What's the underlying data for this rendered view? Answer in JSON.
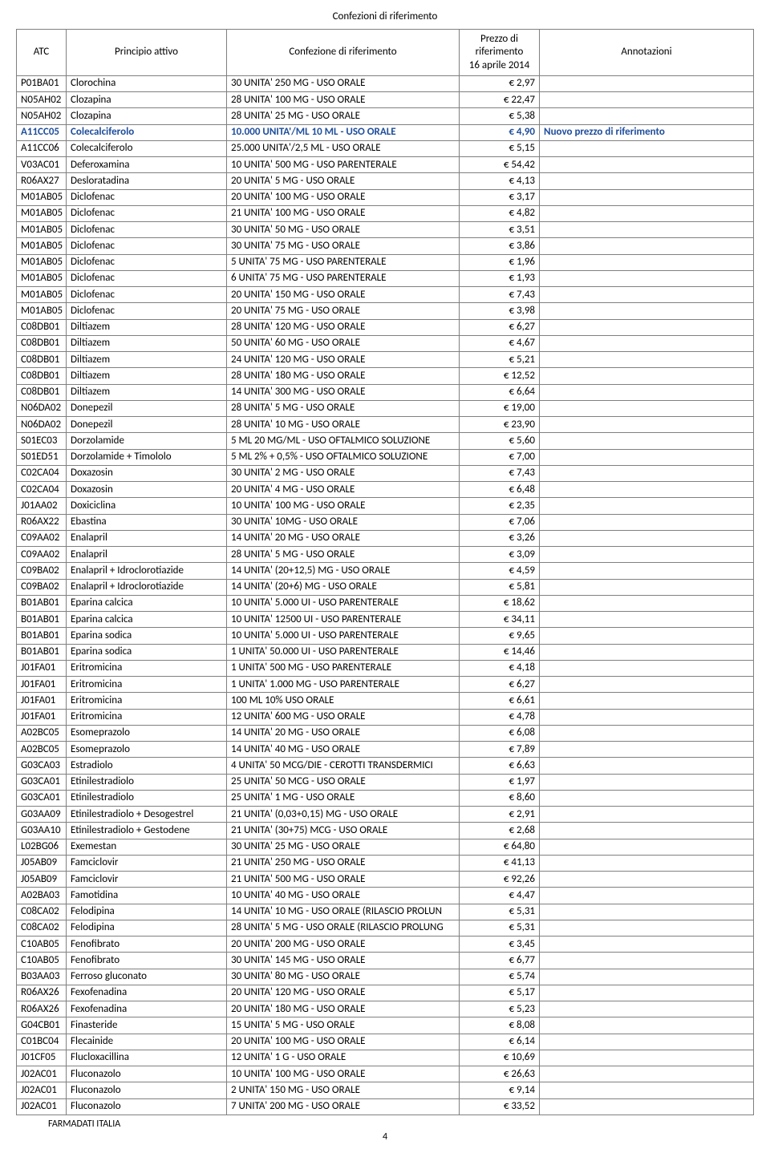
{
  "doc_title": "Confezioni di riferimento",
  "headers": {
    "atc": "ATC",
    "principio": "Principio attivo",
    "confezione": "Confezione di riferimento",
    "prezzo_line1": "Prezzo di",
    "prezzo_line2": "riferimento",
    "prezzo_line3": "16 aprile 2014",
    "annotazioni": "Annotazioni"
  },
  "footer": "FARMADATI ITALIA",
  "page_num": "4",
  "rows": [
    {
      "atc": "P01BA01",
      "p": "Clorochina",
      "c": "30 UNITA' 250 MG - USO ORALE",
      "pr": "€ 2,97",
      "a": ""
    },
    {
      "atc": "N05AH02",
      "p": "Clozapina",
      "c": "28 UNITA' 100 MG - USO ORALE",
      "pr": "€ 22,47",
      "a": ""
    },
    {
      "atc": "N05AH02",
      "p": "Clozapina",
      "c": "28 UNITA' 25 MG - USO ORALE",
      "pr": "€ 5,38",
      "a": ""
    },
    {
      "atc": "A11CC05",
      "p": "Colecalciferolo",
      "c": "10.000 UNITA'/ML 10 ML - USO ORALE",
      "pr": "€ 4,90",
      "a": "Nuovo prezzo di riferimento",
      "hl": true
    },
    {
      "atc": "A11CC06",
      "p": "Colecalciferolo",
      "c": "25.000 UNITA'/2,5 ML  - USO ORALE",
      "pr": "€ 5,15",
      "a": ""
    },
    {
      "atc": "V03AC01",
      "p": "Deferoxamina",
      "c": "10 UNITA' 500 MG - USO PARENTERALE",
      "pr": "€ 54,42",
      "a": ""
    },
    {
      "atc": "R06AX27",
      "p": "Desloratadina",
      "c": "20 UNITA' 5 MG - USO ORALE",
      "pr": "€ 4,13",
      "a": ""
    },
    {
      "atc": "M01AB05",
      "p": "Diclofenac",
      "c": "20 UNITA' 100 MG - USO ORALE",
      "pr": "€ 3,17",
      "a": ""
    },
    {
      "atc": "M01AB05",
      "p": "Diclofenac",
      "c": "21 UNITA' 100 MG - USO ORALE",
      "pr": "€ 4,82",
      "a": ""
    },
    {
      "atc": "M01AB05",
      "p": "Diclofenac",
      "c": "30 UNITA' 50 MG - USO ORALE",
      "pr": "€ 3,51",
      "a": ""
    },
    {
      "atc": "M01AB05",
      "p": "Diclofenac",
      "c": "30 UNITA' 75 MG - USO ORALE",
      "pr": "€ 3,86",
      "a": ""
    },
    {
      "atc": "M01AB05",
      "p": "Diclofenac",
      "c": "5 UNITA' 75 MG - USO PARENTERALE",
      "pr": "€ 1,96",
      "a": ""
    },
    {
      "atc": "M01AB05",
      "p": "Diclofenac",
      "c": "6 UNITA' 75 MG - USO PARENTERALE",
      "pr": "€ 1,93",
      "a": ""
    },
    {
      "atc": "M01AB05",
      "p": "Diclofenac",
      "c": "20 UNITA' 150 MG - USO ORALE",
      "pr": "€ 7,43",
      "a": ""
    },
    {
      "atc": "M01AB05",
      "p": "Diclofenac",
      "c": "20 UNITA' 75 MG - USO ORALE",
      "pr": "€ 3,98",
      "a": ""
    },
    {
      "atc": "C08DB01",
      "p": "Diltiazem",
      "c": "28 UNITA' 120 MG - USO ORALE",
      "pr": "€ 6,27",
      "a": ""
    },
    {
      "atc": "C08DB01",
      "p": "Diltiazem",
      "c": "50 UNITA' 60 MG - USO ORALE",
      "pr": "€ 4,67",
      "a": ""
    },
    {
      "atc": "C08DB01",
      "p": "Diltiazem",
      "c": "24 UNITA' 120 MG - USO ORALE",
      "pr": "€ 5,21",
      "a": ""
    },
    {
      "atc": "C08DB01",
      "p": "Diltiazem",
      "c": "28 UNITA' 180 MG - USO ORALE",
      "pr": "€ 12,52",
      "a": ""
    },
    {
      "atc": "C08DB01",
      "p": "Diltiazem",
      "c": "14 UNITA' 300 MG - USO ORALE",
      "pr": "€ 6,64",
      "a": ""
    },
    {
      "atc": "N06DA02",
      "p": "Donepezil",
      "c": "28 UNITA' 5 MG - USO ORALE",
      "pr": "€ 19,00",
      "a": ""
    },
    {
      "atc": "N06DA02",
      "p": "Donepezil",
      "c": "28 UNITA' 10 MG - USO ORALE",
      "pr": "€ 23,90",
      "a": ""
    },
    {
      "atc": "S01EC03",
      "p": "Dorzolamide",
      "c": "5 ML 20 MG/ML - USO OFTALMICO SOLUZIONE",
      "pr": "€ 5,60",
      "a": ""
    },
    {
      "atc": "S01ED51",
      "p": "Dorzolamide + Timololo",
      "c": "5 ML 2% + 0,5% - USO OFTALMICO SOLUZIONE",
      "pr": "€ 7,00",
      "a": ""
    },
    {
      "atc": "C02CA04",
      "p": "Doxazosin",
      "c": "30 UNITA' 2 MG - USO ORALE",
      "pr": "€ 7,43",
      "a": ""
    },
    {
      "atc": "C02CA04",
      "p": "Doxazosin",
      "c": "20 UNITA' 4 MG - USO ORALE",
      "pr": "€ 6,48",
      "a": ""
    },
    {
      "atc": "J01AA02",
      "p": "Doxiciclina",
      "c": "10 UNITA' 100 MG - USO ORALE",
      "pr": "€ 2,35",
      "a": ""
    },
    {
      "atc": "R06AX22",
      "p": "Ebastina",
      "c": "30 UNITA' 10MG - USO ORALE",
      "pr": "€ 7,06",
      "a": ""
    },
    {
      "atc": "C09AA02",
      "p": "Enalapril",
      "c": "14 UNITA' 20 MG - USO ORALE",
      "pr": "€ 3,26",
      "a": ""
    },
    {
      "atc": "C09AA02",
      "p": "Enalapril",
      "c": "28 UNITA' 5 MG - USO ORALE",
      "pr": "€ 3,09",
      "a": ""
    },
    {
      "atc": "C09BA02",
      "p": "Enalapril + Idroclorotiazide",
      "c": "14 UNITA' (20+12,5) MG - USO ORALE",
      "pr": "€ 4,59",
      "a": ""
    },
    {
      "atc": "C09BA02",
      "p": "Enalapril + Idroclorotiazide",
      "c": "14 UNITA' (20+6) MG - USO ORALE",
      "pr": "€ 5,81",
      "a": ""
    },
    {
      "atc": "B01AB01",
      "p": "Eparina calcica",
      "c": "10 UNITA' 5.000 UI - USO PARENTERALE",
      "pr": "€ 18,62",
      "a": ""
    },
    {
      "atc": "B01AB01",
      "p": "Eparina calcica",
      "c": "10 UNITA' 12500 UI - USO PARENTERALE",
      "pr": "€ 34,11",
      "a": ""
    },
    {
      "atc": "B01AB01",
      "p": "Eparina sodica",
      "c": "10 UNITA' 5.000 UI - USO PARENTERALE",
      "pr": "€ 9,65",
      "a": ""
    },
    {
      "atc": "B01AB01",
      "p": "Eparina sodica",
      "c": "1 UNITA' 50.000 UI - USO PARENTERALE",
      "pr": "€ 14,46",
      "a": ""
    },
    {
      "atc": "J01FA01",
      "p": "Eritromicina",
      "c": "1 UNITA' 500 MG - USO PARENTERALE",
      "pr": "€ 4,18",
      "a": ""
    },
    {
      "atc": "J01FA01",
      "p": "Eritromicina",
      "c": "1 UNITA' 1.000 MG - USO PARENTERALE",
      "pr": "€ 6,27",
      "a": ""
    },
    {
      "atc": "J01FA01",
      "p": "Eritromicina",
      "c": "100 ML 10% USO ORALE",
      "pr": "€ 6,61",
      "a": ""
    },
    {
      "atc": "J01FA01",
      "p": "Eritromicina",
      "c": "12 UNITA' 600 MG - USO ORALE",
      "pr": "€ 4,78",
      "a": ""
    },
    {
      "atc": "A02BC05",
      "p": "Esomeprazolo",
      "c": "14 UNITA' 20 MG - USO ORALE",
      "pr": "€ 6,08",
      "a": ""
    },
    {
      "atc": "A02BC05",
      "p": "Esomeprazolo",
      "c": "14 UNITA' 40 MG - USO ORALE",
      "pr": "€ 7,89",
      "a": ""
    },
    {
      "atc": "G03CA03",
      "p": "Estradiolo",
      "c": "4 UNITA' 50 MCG/DIE - CEROTTI TRANSDERMICI",
      "pr": "€ 6,63",
      "a": ""
    },
    {
      "atc": "G03CA01",
      "p": "Etinilestradiolo",
      "c": "25 UNITA' 50 MCG - USO ORALE",
      "pr": "€ 1,97",
      "a": ""
    },
    {
      "atc": "G03CA01",
      "p": "Etinilestradiolo",
      "c": "25 UNITA' 1 MG - USO ORALE",
      "pr": "€ 8,60",
      "a": ""
    },
    {
      "atc": "G03AA09",
      "p": "Etinilestradiolo + Desogestrel",
      "c": "21 UNITA' (0,03+0,15) MG - USO ORALE",
      "pr": "€ 2,91",
      "a": ""
    },
    {
      "atc": "G03AA10",
      "p": "Etinilestradiolo + Gestodene",
      "c": "21 UNITA' (30+75) MCG - USO ORALE",
      "pr": "€ 2,68",
      "a": ""
    },
    {
      "atc": "L02BG06",
      "p": "Exemestan",
      "c": "30 UNITA' 25 MG - USO ORALE",
      "pr": "€ 64,80",
      "a": ""
    },
    {
      "atc": "J05AB09",
      "p": "Famciclovir",
      "c": "21 UNITA' 250 MG - USO ORALE",
      "pr": "€ 41,13",
      "a": ""
    },
    {
      "atc": "J05AB09",
      "p": "Famciclovir",
      "c": "21 UNITA' 500 MG - USO ORALE",
      "pr": "€ 92,26",
      "a": ""
    },
    {
      "atc": "A02BA03",
      "p": "Famotidina",
      "c": "10 UNITA' 40 MG - USO ORALE",
      "pr": "€ 4,47",
      "a": ""
    },
    {
      "atc": "C08CA02",
      "p": "Felodipina",
      "c": "14 UNITA' 10 MG - USO ORALE (RILASCIO PROLUN",
      "pr": "€ 5,31",
      "a": ""
    },
    {
      "atc": "C08CA02",
      "p": "Felodipina",
      "c": "28 UNITA' 5 MG - USO ORALE (RILASCIO PROLUNG",
      "pr": "€ 5,31",
      "a": ""
    },
    {
      "atc": "C10AB05",
      "p": "Fenofibrato",
      "c": "20 UNITA' 200 MG - USO ORALE",
      "pr": "€ 3,45",
      "a": ""
    },
    {
      "atc": "C10AB05",
      "p": "Fenofibrato",
      "c": "30 UNITA' 145 MG - USO ORALE",
      "pr": "€ 6,77",
      "a": ""
    },
    {
      "atc": "B03AA03",
      "p": "Ferroso gluconato",
      "c": "30 UNITA' 80 MG - USO ORALE",
      "pr": "€ 5,74",
      "a": ""
    },
    {
      "atc": "R06AX26",
      "p": "Fexofenadina",
      "c": "20 UNITA' 120 MG - USO ORALE",
      "pr": "€ 5,17",
      "a": ""
    },
    {
      "atc": "R06AX26",
      "p": "Fexofenadina",
      "c": "20 UNITA' 180 MG - USO ORALE",
      "pr": "€ 5,23",
      "a": ""
    },
    {
      "atc": "G04CB01",
      "p": "Finasteride",
      "c": "15 UNITA' 5 MG - USO ORALE",
      "pr": "€ 8,08",
      "a": ""
    },
    {
      "atc": "C01BC04",
      "p": "Flecainide",
      "c": "20 UNITA' 100 MG - USO ORALE",
      "pr": "€ 6,14",
      "a": ""
    },
    {
      "atc": "J01CF05",
      "p": "Flucloxacillina",
      "c": "12 UNITA' 1 G - USO ORALE",
      "pr": "€ 10,69",
      "a": ""
    },
    {
      "atc": "J02AC01",
      "p": "Fluconazolo",
      "c": "10 UNITA' 100 MG - USO ORALE",
      "pr": "€ 26,63",
      "a": ""
    },
    {
      "atc": "J02AC01",
      "p": "Fluconazolo",
      "c": "2 UNITA' 150 MG - USO ORALE",
      "pr": "€ 9,14",
      "a": ""
    },
    {
      "atc": "J02AC01",
      "p": "Fluconazolo",
      "c": "7 UNITA' 200 MG - USO ORALE",
      "pr": "€ 33,52",
      "a": ""
    }
  ]
}
